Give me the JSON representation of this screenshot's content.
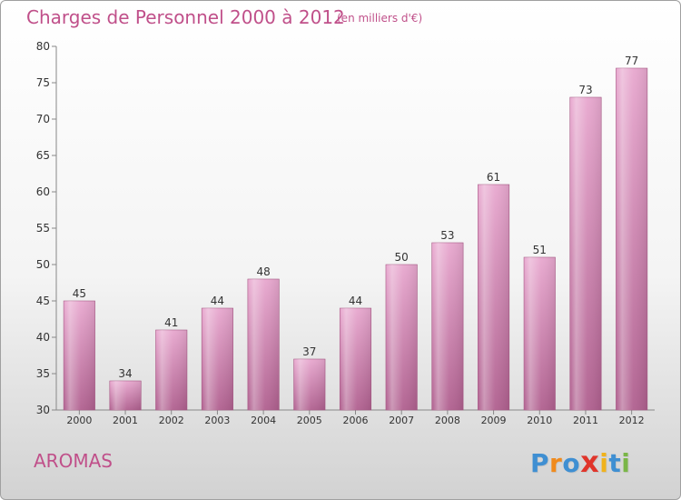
{
  "title": "Charges de Personnel 2000 à 2012",
  "subtitle": "(en milliers d'€)",
  "commune": "AROMAS",
  "logo": {
    "letters": [
      "P",
      "r",
      "o",
      "x",
      "i",
      "t",
      "i"
    ],
    "colors": [
      "#3f8fd2",
      "#f08a1c",
      "#3f8fd2",
      "#e0352b",
      "#f0b21c",
      "#3f8fd2",
      "#7ab648"
    ]
  },
  "colors": {
    "bar_top": "#e8a8cf",
    "bar_bottom": "#b0608f",
    "text_accent": "#c0508a"
  },
  "chart_data": {
    "type": "bar",
    "categories": [
      "2000",
      "2001",
      "2002",
      "2003",
      "2004",
      "2005",
      "2006",
      "2007",
      "2008",
      "2009",
      "2010",
      "2011",
      "2012"
    ],
    "values": [
      45,
      34,
      41,
      44,
      48,
      37,
      44,
      50,
      53,
      61,
      51,
      73,
      77
    ],
    "title": "Charges de Personnel 2000 à 2012",
    "subtitle": "(en milliers d'€)",
    "ylim": [
      30,
      80
    ],
    "yticks": [
      30,
      35,
      40,
      45,
      50,
      55,
      60,
      65,
      70,
      75,
      80
    ],
    "grid": false,
    "data_labels": true
  }
}
